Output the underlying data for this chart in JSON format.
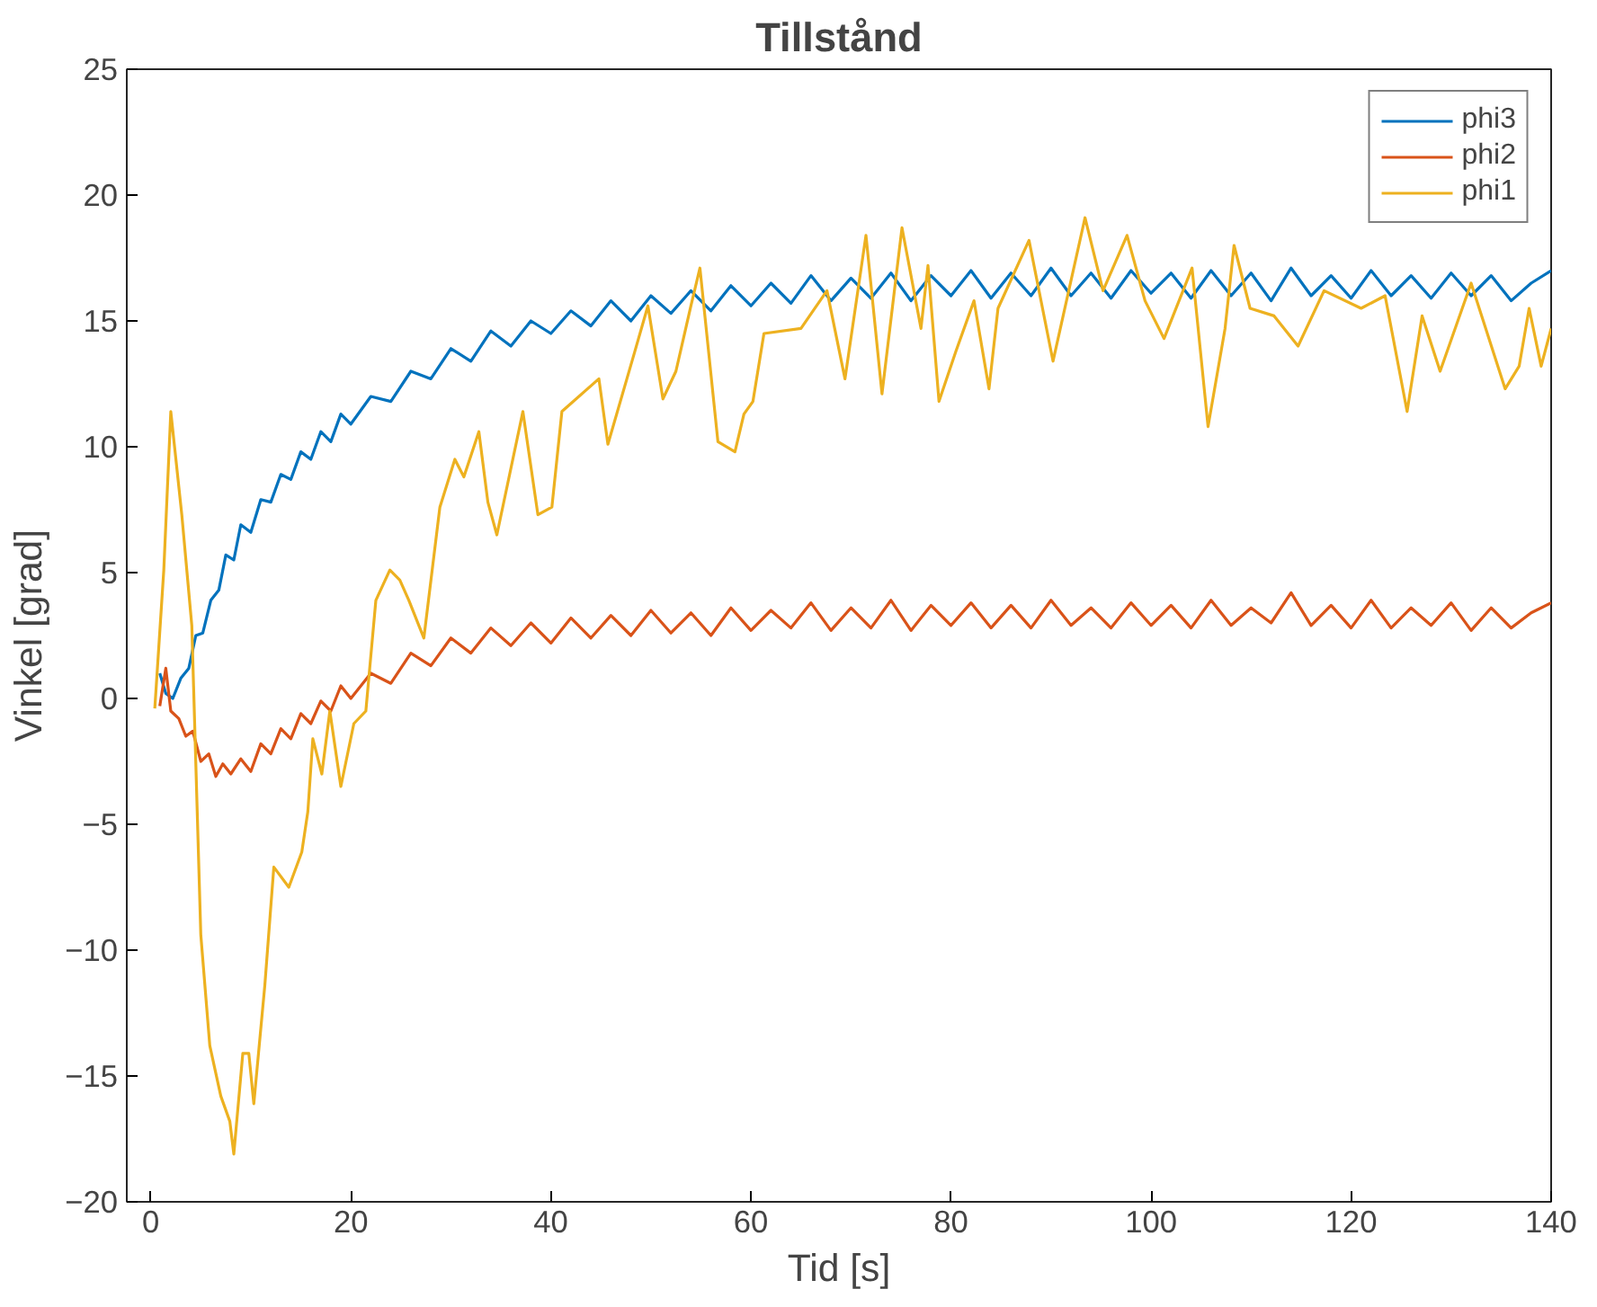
{
  "chart_data": {
    "type": "line",
    "title": "Tillstånd",
    "xlabel": "Tid [s]",
    "ylabel": "Vinkel [grad]",
    "xlim": [
      -2.4,
      140
    ],
    "ylim": [
      -20,
      25
    ],
    "xticks": [
      0,
      20,
      40,
      60,
      80,
      100,
      120,
      140
    ],
    "yticks": [
      -20,
      -15,
      -10,
      -5,
      0,
      5,
      10,
      15,
      20,
      25
    ],
    "grid": false,
    "legend": "top right",
    "marker": "none",
    "line_style": "solid",
    "series": [
      {
        "name": "phi3",
        "color": "#0072bd",
        "x": [
          0.9,
          1.5,
          2.2,
          3,
          3.8,
          4.5,
          5.2,
          6,
          6.8,
          7.5,
          8.3,
          9,
          10,
          11,
          12,
          13,
          14,
          15,
          16,
          17,
          18,
          19,
          20,
          22,
          24,
          26,
          28,
          30,
          32,
          34,
          36,
          38,
          40,
          42,
          44,
          46,
          48,
          50,
          52,
          54,
          56,
          58,
          60,
          62,
          64,
          66,
          68,
          70,
          72,
          74,
          76,
          78,
          80,
          82,
          84,
          86,
          88,
          90,
          92,
          94,
          96,
          98,
          100,
          102,
          104,
          106,
          108,
          110,
          112,
          114,
          116,
          118,
          120,
          122,
          124,
          126,
          128,
          130,
          132,
          134,
          136,
          138,
          140
        ],
        "values": [
          1.0,
          0.2,
          0.0,
          0.8,
          1.2,
          2.5,
          2.6,
          3.9,
          4.3,
          5.7,
          5.5,
          6.9,
          6.6,
          7.9,
          7.8,
          8.9,
          8.7,
          9.8,
          9.5,
          10.6,
          10.2,
          11.3,
          10.9,
          12.0,
          11.8,
          13.0,
          12.7,
          13.9,
          13.4,
          14.6,
          14.0,
          15.0,
          14.5,
          15.4,
          14.8,
          15.8,
          15.0,
          16.0,
          15.3,
          16.2,
          15.4,
          16.4,
          15.6,
          16.5,
          15.7,
          16.8,
          15.8,
          16.7,
          15.9,
          16.9,
          15.8,
          16.8,
          16.0,
          17.0,
          15.9,
          16.9,
          16.0,
          17.1,
          16.0,
          16.9,
          15.9,
          17.0,
          16.1,
          16.9,
          15.9,
          17.0,
          16.0,
          16.9,
          15.8,
          17.1,
          16.0,
          16.8,
          15.9,
          17.0,
          16.0,
          16.8,
          15.9,
          16.9,
          16.0,
          16.8,
          15.8,
          16.5,
          17.0
        ]
      },
      {
        "name": "phi2",
        "color": "#d95319",
        "x": [
          0.9,
          1.5,
          2,
          2.8,
          3.5,
          4.2,
          5,
          5.8,
          6.5,
          7.2,
          8,
          9,
          10,
          11,
          12,
          13,
          14,
          15,
          16,
          17,
          18,
          19,
          20,
          22,
          24,
          26,
          28,
          30,
          32,
          34,
          36,
          38,
          40,
          42,
          44,
          46,
          48,
          50,
          52,
          54,
          56,
          58,
          60,
          62,
          64,
          66,
          68,
          70,
          72,
          74,
          76,
          78,
          80,
          82,
          84,
          86,
          88,
          90,
          92,
          94,
          96,
          98,
          100,
          102,
          104,
          106,
          108,
          110,
          112,
          114,
          116,
          118,
          120,
          122,
          124,
          126,
          128,
          130,
          132,
          134,
          136,
          138,
          140
        ],
        "values": [
          -0.3,
          1.2,
          -0.5,
          -0.8,
          -1.5,
          -1.3,
          -2.5,
          -2.2,
          -3.1,
          -2.6,
          -3.0,
          -2.4,
          -2.9,
          -1.8,
          -2.2,
          -1.2,
          -1.6,
          -0.6,
          -1.0,
          -0.1,
          -0.5,
          0.5,
          0.0,
          1.0,
          0.6,
          1.8,
          1.3,
          2.4,
          1.8,
          2.8,
          2.1,
          3.0,
          2.2,
          3.2,
          2.4,
          3.3,
          2.5,
          3.5,
          2.6,
          3.4,
          2.5,
          3.6,
          2.7,
          3.5,
          2.8,
          3.8,
          2.7,
          3.6,
          2.8,
          3.9,
          2.7,
          3.7,
          2.9,
          3.8,
          2.8,
          3.7,
          2.8,
          3.9,
          2.9,
          3.6,
          2.8,
          3.8,
          2.9,
          3.7,
          2.8,
          3.9,
          2.9,
          3.6,
          3.0,
          4.2,
          2.9,
          3.7,
          2.8,
          3.9,
          2.8,
          3.6,
          2.9,
          3.8,
          2.7,
          3.6,
          2.8,
          3.4,
          3.8
        ]
      },
      {
        "name": "phi1",
        "color": "#edb120",
        "x": [
          0.4,
          1.3,
          2.0,
          3.1,
          4.1,
          5.0,
          5.9,
          7.0,
          7.9,
          8.3,
          9.2,
          9.8,
          10.3,
          11.4,
          12.3,
          13.8,
          15.1,
          15.7,
          16.2,
          17.1,
          17.9,
          19.0,
          20.3,
          21.5,
          22.5,
          23.9,
          24.9,
          25.8,
          27.3,
          28.9,
          30.4,
          31.3,
          32.8,
          33.7,
          34.6,
          37.2,
          38.7,
          40.1,
          41.1,
          44.8,
          45.7,
          48.4,
          49.7,
          51.2,
          52.5,
          54.0,
          54.9,
          56.7,
          58.4,
          59.3,
          60.2,
          61.3,
          65.0,
          67.6,
          69.4,
          71.5,
          73.1,
          75.1,
          77.0,
          77.7,
          78.8,
          80.5,
          82.3,
          83.8,
          84.7,
          87.8,
          90.2,
          93.4,
          95.2,
          97.6,
          99.4,
          101.3,
          104.1,
          105.7,
          107.4,
          108.3,
          109.9,
          112.3,
          114.7,
          117.3,
          121.0,
          123.4,
          125.6,
          127.1,
          128.9,
          132.0,
          135.4,
          136.8,
          137.8,
          139.0,
          140.0
        ],
        "values": [
          -0.4,
          5.1,
          11.4,
          7.3,
          2.9,
          -9.4,
          -13.8,
          -15.8,
          -16.8,
          -18.1,
          -14.1,
          -14.1,
          -16.1,
          -11.4,
          -6.7,
          -7.5,
          -6.1,
          -4.5,
          -1.6,
          -3.0,
          -0.5,
          -3.5,
          -1.0,
          -0.5,
          3.9,
          5.1,
          4.7,
          3.9,
          2.4,
          7.6,
          9.5,
          8.8,
          10.6,
          7.8,
          6.5,
          11.4,
          7.3,
          7.6,
          11.4,
          12.7,
          10.1,
          13.8,
          15.6,
          11.9,
          13.0,
          15.6,
          17.1,
          10.2,
          9.8,
          11.3,
          11.8,
          14.5,
          14.7,
          16.2,
          12.7,
          18.4,
          12.1,
          18.7,
          14.7,
          17.2,
          11.8,
          13.8,
          15.8,
          12.3,
          15.5,
          18.2,
          13.4,
          19.1,
          16.2,
          18.4,
          15.8,
          14.3,
          17.1,
          10.8,
          14.7,
          18.0,
          15.5,
          15.2,
          14.0,
          16.2,
          15.5,
          16.0,
          11.4,
          15.2,
          13.0,
          16.5,
          12.3,
          13.2,
          15.5,
          13.2,
          14.7
        ]
      }
    ]
  }
}
